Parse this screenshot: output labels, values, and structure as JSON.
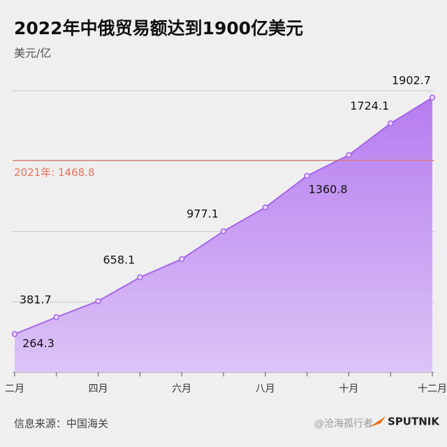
{
  "chart_data": {
    "type": "area",
    "title": "2022年中俄贸易额达到1900亿美元",
    "y_label": "美元/亿",
    "categories": [
      "二月",
      null,
      "四月",
      null,
      "六月",
      null,
      "八月",
      null,
      "十月",
      null,
      "十二月"
    ],
    "series": [
      {
        "name": "2022",
        "color": "#a565e8",
        "values": [
          264.3,
          381.7,
          493,
          658.1,
          784,
          977.1,
          1142,
          1360.8,
          1505,
          1724.1,
          1902.7
        ],
        "value_labels": [
          "264.3",
          "381.7",
          null,
          "658.1",
          null,
          "977.1",
          null,
          "1360.8",
          null,
          "1724.1",
          "1902.7"
        ]
      }
    ],
    "ylim": [
      0,
      1950
    ],
    "yticks": [
      0,
      487.5,
      975,
      1462.5,
      1950
    ],
    "grid": true,
    "reference": {
      "value": 1468.8,
      "label": "2021年: 1468.8",
      "color": "#e8735a"
    },
    "source": "信息来源：中国海关",
    "logo": "SPUTNIK",
    "watermark": "@沧海孤行者"
  }
}
